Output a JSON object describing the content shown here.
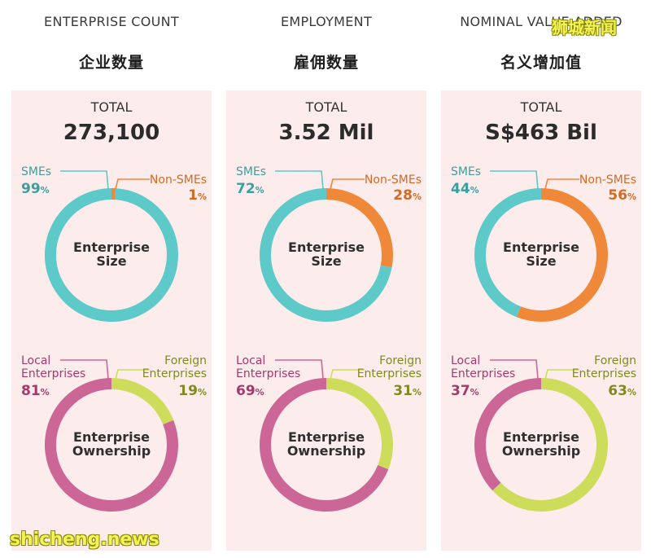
{
  "chart_data": [
    {
      "type": "pie",
      "heading": "ENTERPRISE COUNT",
      "heading_cn": "企业数量",
      "total_label": "TOTAL",
      "total_value": "273,100",
      "donuts": [
        {
          "title": [
            "Enterprise",
            "Size"
          ],
          "slices": [
            {
              "name": [
                "SMEs"
              ],
              "value": 99,
              "color": "#5ec9c9"
            },
            {
              "name": [
                "Non-SMEs"
              ],
              "value": 1,
              "color": "#f0883a"
            }
          ]
        },
        {
          "title": [
            "Enterprise",
            "Ownership"
          ],
          "slices": [
            {
              "name": [
                "Local",
                "Enterprises"
              ],
              "value": 81,
              "color": "#cc6696"
            },
            {
              "name": [
                "Foreign",
                "Enterprises"
              ],
              "value": 19,
              "color": "#cddc5a"
            }
          ]
        }
      ]
    },
    {
      "type": "pie",
      "heading": "EMPLOYMENT",
      "heading_cn": "雇佣数量",
      "total_label": "TOTAL",
      "total_value": "3.52 Mil",
      "donuts": [
        {
          "title": [
            "Enterprise",
            "Size"
          ],
          "slices": [
            {
              "name": [
                "SMEs"
              ],
              "value": 72,
              "color": "#5ec9c9"
            },
            {
              "name": [
                "Non-SMEs"
              ],
              "value": 28,
              "color": "#f0883a"
            }
          ]
        },
        {
          "title": [
            "Enterprise",
            "Ownership"
          ],
          "slices": [
            {
              "name": [
                "Local",
                "Enterprises"
              ],
              "value": 69,
              "color": "#cc6696"
            },
            {
              "name": [
                "Foreign",
                "Enterprises"
              ],
              "value": 31,
              "color": "#cddc5a"
            }
          ]
        }
      ]
    },
    {
      "type": "pie",
      "heading": "NOMINAL VALUE ADDED",
      "heading_cn": "名义增加值",
      "total_label": "TOTAL",
      "total_value": "S$463 Bil",
      "donuts": [
        {
          "title": [
            "Enterprise",
            "Size"
          ],
          "slices": [
            {
              "name": [
                "SMEs"
              ],
              "value": 44,
              "color": "#5ec9c9"
            },
            {
              "name": [
                "Non-SMEs"
              ],
              "value": 56,
              "color": "#f0883a"
            }
          ]
        },
        {
          "title": [
            "Enterprise",
            "Ownership"
          ],
          "slices": [
            {
              "name": [
                "Local",
                "Enterprises"
              ],
              "value": 37,
              "color": "#cc6696"
            },
            {
              "name": [
                "Foreign",
                "Enterprises"
              ],
              "value": 63,
              "color": "#cddc5a"
            }
          ]
        }
      ]
    }
  ],
  "colors": {
    "panel_bg": "#fdecec",
    "sme": "#5ec9c9",
    "non_sme": "#f0883a",
    "local": "#cc6696",
    "foreign": "#cddc5a",
    "sme_text": "#3b9f9f",
    "non_sme_text": "#d46a23",
    "local_text": "#a8386c",
    "foreign_text": "#7f8a1f"
  },
  "unit_symbol": "%",
  "watermarks": {
    "top": "狮城新闻",
    "bottom": "shicheng.news"
  }
}
